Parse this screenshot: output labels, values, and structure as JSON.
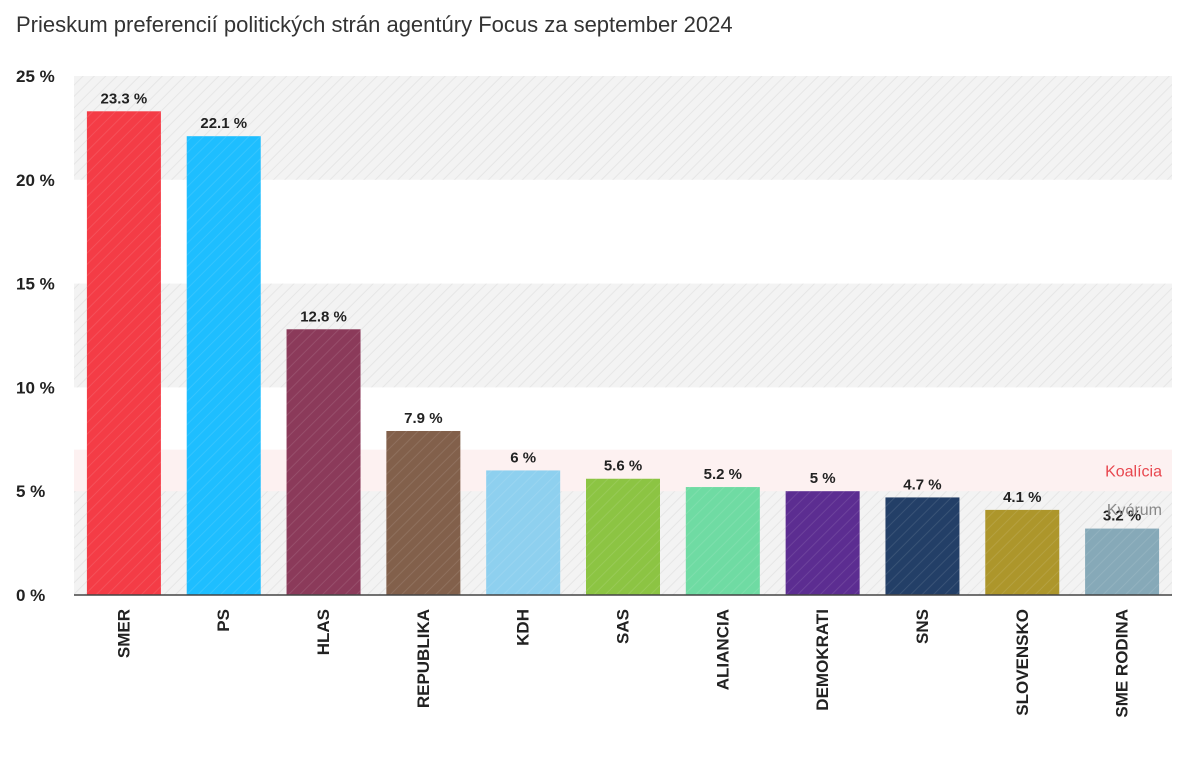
{
  "chart_data": {
    "type": "bar",
    "title": "Prieskum preferencií politických strán agentúry Focus za september 2024",
    "categories": [
      "SMER",
      "PS",
      "HLAS",
      "REPUBLIKA",
      "KDH",
      "SAS",
      "ALIANCIA",
      "DEMOKRATI",
      "SNS",
      "SLOVENSKO",
      "SME RODINA"
    ],
    "values": [
      23.3,
      22.1,
      12.8,
      7.9,
      6,
      5.6,
      5.2,
      5,
      4.7,
      4.1,
      3.2
    ],
    "value_labels": [
      "23.3 %",
      "22.1 %",
      "12.8 %",
      "7.9 %",
      "6 %",
      "5.6 %",
      "5.2 %",
      "5 %",
      "4.7 %",
      "4.1 %",
      "3.2 %"
    ],
    "colors": [
      "#f43c46",
      "#1ebeff",
      "#8b3a5a",
      "#82604b",
      "#8ed0ef",
      "#8cc443",
      "#6fdba3",
      "#5c2d91",
      "#233f67",
      "#ad962b",
      "#86a9b8"
    ],
    "ylim": [
      0,
      25
    ],
    "yticks": [
      0,
      5,
      10,
      15,
      20,
      25
    ],
    "ytick_labels": [
      "0 %",
      "5 %",
      "10 %",
      "15 %",
      "20 %",
      "25 %"
    ],
    "bands": [
      {
        "label": "Koalícia",
        "from": 5,
        "to": 7,
        "color": "#e8474f"
      },
      {
        "label": "Kvórum",
        "from": 3,
        "to": 5,
        "color": "#888888"
      }
    ],
    "xlabel": "",
    "ylabel": "",
    "grid": "alternating hatched bands",
    "legend": "none"
  }
}
